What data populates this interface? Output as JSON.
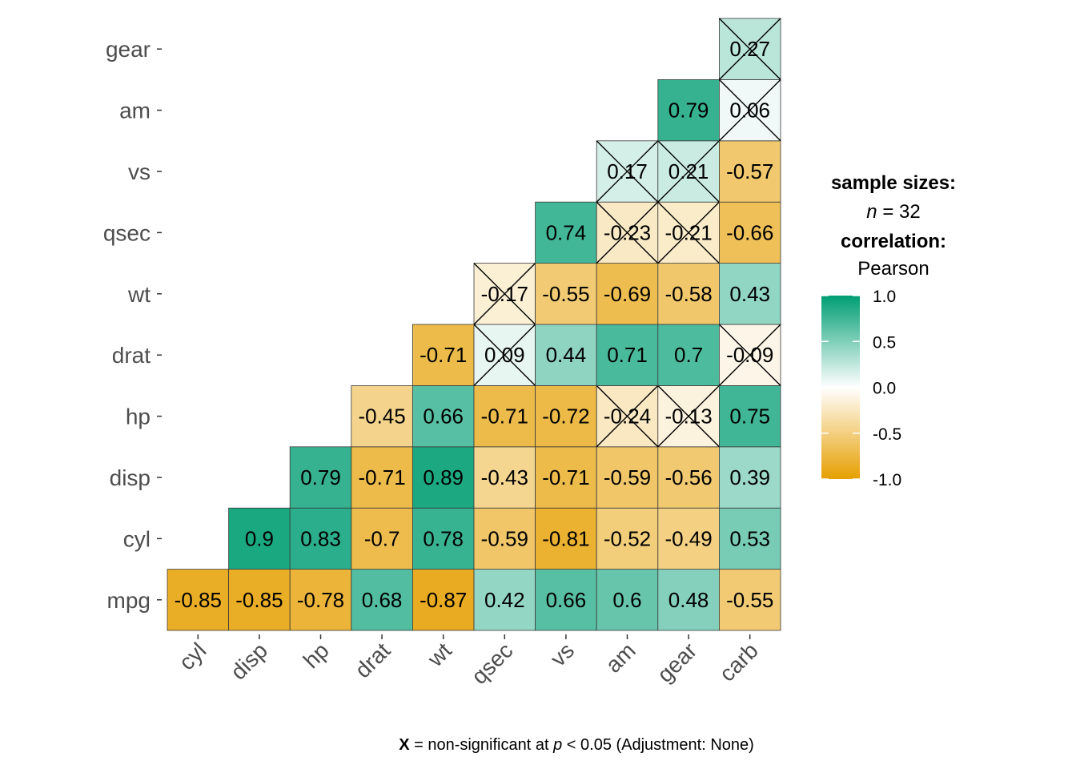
{
  "chart_data": {
    "type": "heatmap",
    "variables": [
      "mpg",
      "cyl",
      "disp",
      "hp",
      "drat",
      "wt",
      "qsec",
      "vs",
      "am",
      "gear",
      "carb"
    ],
    "x_labels": [
      "cyl",
      "disp",
      "hp",
      "drat",
      "wt",
      "qsec",
      "vs",
      "am",
      "gear",
      "carb"
    ],
    "y_labels": [
      "mpg",
      "cyl",
      "disp",
      "hp",
      "drat",
      "wt",
      "qsec",
      "vs",
      "am",
      "gear"
    ],
    "cells": [
      {
        "x": "cyl",
        "y": "mpg",
        "value": -0.85,
        "label": "-0.85",
        "nonsig": false
      },
      {
        "x": "disp",
        "y": "mpg",
        "value": -0.85,
        "label": "-0.85",
        "nonsig": false
      },
      {
        "x": "hp",
        "y": "mpg",
        "value": -0.78,
        "label": "-0.78",
        "nonsig": false
      },
      {
        "x": "drat",
        "y": "mpg",
        "value": 0.68,
        "label": "0.68",
        "nonsig": false
      },
      {
        "x": "wt",
        "y": "mpg",
        "value": -0.87,
        "label": "-0.87",
        "nonsig": false
      },
      {
        "x": "qsec",
        "y": "mpg",
        "value": 0.42,
        "label": "0.42",
        "nonsig": false
      },
      {
        "x": "vs",
        "y": "mpg",
        "value": 0.66,
        "label": "0.66",
        "nonsig": false
      },
      {
        "x": "am",
        "y": "mpg",
        "value": 0.6,
        "label": "0.6",
        "nonsig": false
      },
      {
        "x": "gear",
        "y": "mpg",
        "value": 0.48,
        "label": "0.48",
        "nonsig": false
      },
      {
        "x": "carb",
        "y": "mpg",
        "value": -0.55,
        "label": "-0.55",
        "nonsig": false
      },
      {
        "x": "disp",
        "y": "cyl",
        "value": 0.9,
        "label": "0.9",
        "nonsig": false
      },
      {
        "x": "hp",
        "y": "cyl",
        "value": 0.83,
        "label": "0.83",
        "nonsig": false
      },
      {
        "x": "drat",
        "y": "cyl",
        "value": -0.7,
        "label": "-0.7",
        "nonsig": false
      },
      {
        "x": "wt",
        "y": "cyl",
        "value": 0.78,
        "label": "0.78",
        "nonsig": false
      },
      {
        "x": "qsec",
        "y": "cyl",
        "value": -0.59,
        "label": "-0.59",
        "nonsig": false
      },
      {
        "x": "vs",
        "y": "cyl",
        "value": -0.81,
        "label": "-0.81",
        "nonsig": false
      },
      {
        "x": "am",
        "y": "cyl",
        "value": -0.52,
        "label": "-0.52",
        "nonsig": false
      },
      {
        "x": "gear",
        "y": "cyl",
        "value": -0.49,
        "label": "-0.49",
        "nonsig": false
      },
      {
        "x": "carb",
        "y": "cyl",
        "value": 0.53,
        "label": "0.53",
        "nonsig": false
      },
      {
        "x": "hp",
        "y": "disp",
        "value": 0.79,
        "label": "0.79",
        "nonsig": false
      },
      {
        "x": "drat",
        "y": "disp",
        "value": -0.71,
        "label": "-0.71",
        "nonsig": false
      },
      {
        "x": "wt",
        "y": "disp",
        "value": 0.89,
        "label": "0.89",
        "nonsig": false
      },
      {
        "x": "qsec",
        "y": "disp",
        "value": -0.43,
        "label": "-0.43",
        "nonsig": false
      },
      {
        "x": "vs",
        "y": "disp",
        "value": -0.71,
        "label": "-0.71",
        "nonsig": false
      },
      {
        "x": "am",
        "y": "disp",
        "value": -0.59,
        "label": "-0.59",
        "nonsig": false
      },
      {
        "x": "gear",
        "y": "disp",
        "value": -0.56,
        "label": "-0.56",
        "nonsig": false
      },
      {
        "x": "carb",
        "y": "disp",
        "value": 0.39,
        "label": "0.39",
        "nonsig": false
      },
      {
        "x": "drat",
        "y": "hp",
        "value": -0.45,
        "label": "-0.45",
        "nonsig": false
      },
      {
        "x": "wt",
        "y": "hp",
        "value": 0.66,
        "label": "0.66",
        "nonsig": false
      },
      {
        "x": "qsec",
        "y": "hp",
        "value": -0.71,
        "label": "-0.71",
        "nonsig": false
      },
      {
        "x": "vs",
        "y": "hp",
        "value": -0.72,
        "label": "-0.72",
        "nonsig": false
      },
      {
        "x": "am",
        "y": "hp",
        "value": -0.24,
        "label": "-0.24",
        "nonsig": true
      },
      {
        "x": "gear",
        "y": "hp",
        "value": -0.13,
        "label": "-0.13",
        "nonsig": true
      },
      {
        "x": "carb",
        "y": "hp",
        "value": 0.75,
        "label": "0.75",
        "nonsig": false
      },
      {
        "x": "wt",
        "y": "drat",
        "value": -0.71,
        "label": "-0.71",
        "nonsig": false
      },
      {
        "x": "qsec",
        "y": "drat",
        "value": 0.09,
        "label": "0.09",
        "nonsig": true
      },
      {
        "x": "vs",
        "y": "drat",
        "value": 0.44,
        "label": "0.44",
        "nonsig": false
      },
      {
        "x": "am",
        "y": "drat",
        "value": 0.71,
        "label": "0.71",
        "nonsig": false
      },
      {
        "x": "gear",
        "y": "drat",
        "value": 0.7,
        "label": "0.7",
        "nonsig": false
      },
      {
        "x": "carb",
        "y": "drat",
        "value": -0.09,
        "label": "-0.09",
        "nonsig": true
      },
      {
        "x": "qsec",
        "y": "wt",
        "value": -0.17,
        "label": "-0.17",
        "nonsig": true
      },
      {
        "x": "vs",
        "y": "wt",
        "value": -0.55,
        "label": "-0.55",
        "nonsig": false
      },
      {
        "x": "am",
        "y": "wt",
        "value": -0.69,
        "label": "-0.69",
        "nonsig": false
      },
      {
        "x": "gear",
        "y": "wt",
        "value": -0.58,
        "label": "-0.58",
        "nonsig": false
      },
      {
        "x": "carb",
        "y": "wt",
        "value": 0.43,
        "label": "0.43",
        "nonsig": false
      },
      {
        "x": "vs",
        "y": "qsec",
        "value": 0.74,
        "label": "0.74",
        "nonsig": false
      },
      {
        "x": "am",
        "y": "qsec",
        "value": -0.23,
        "label": "-0.23",
        "nonsig": true
      },
      {
        "x": "gear",
        "y": "qsec",
        "value": -0.21,
        "label": "-0.21",
        "nonsig": true
      },
      {
        "x": "carb",
        "y": "qsec",
        "value": -0.66,
        "label": "-0.66",
        "nonsig": false
      },
      {
        "x": "am",
        "y": "vs",
        "value": 0.17,
        "label": "0.17",
        "nonsig": true
      },
      {
        "x": "gear",
        "y": "vs",
        "value": 0.21,
        "label": "0.21",
        "nonsig": true
      },
      {
        "x": "carb",
        "y": "vs",
        "value": -0.57,
        "label": "-0.57",
        "nonsig": false
      },
      {
        "x": "gear",
        "y": "am",
        "value": 0.79,
        "label": "0.79",
        "nonsig": false
      },
      {
        "x": "carb",
        "y": "am",
        "value": 0.06,
        "label": "0.06",
        "nonsig": true
      },
      {
        "x": "carb",
        "y": "gear",
        "value": 0.27,
        "label": "0.27",
        "nonsig": true
      }
    ],
    "color_scale": {
      "low": "#E69F00",
      "mid": "#FFFFFF",
      "high": "#009E73",
      "limits": [
        -1.0,
        1.0
      ]
    },
    "legend": {
      "placement": "right",
      "title_line1": "sample sizes:",
      "title_line2_italic": "n",
      "title_line2_rest": " = 32",
      "title_line3": "correlation:",
      "title_line4": "Pearson",
      "ticks": [
        {
          "value": 1.0,
          "label": "1.0"
        },
        {
          "value": 0.5,
          "label": "0.5"
        },
        {
          "value": 0.0,
          "label": "0.0"
        },
        {
          "value": -0.5,
          "label": "-0.5"
        },
        {
          "value": -1.0,
          "label": "-1.0"
        }
      ]
    },
    "caption": {
      "bold": "X",
      "part1": " = non-significant at ",
      "italic": "p",
      "part2": " < 0.05 (Adjustment: None)"
    }
  }
}
